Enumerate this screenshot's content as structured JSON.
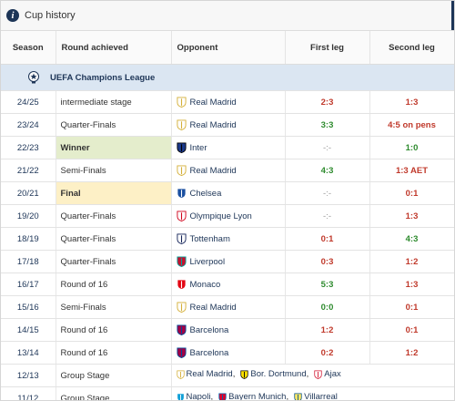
{
  "header": {
    "title": "Cup history"
  },
  "columns": {
    "season": "Season",
    "round": "Round achieved",
    "opponent": "Opponent",
    "first_leg": "First leg",
    "second_leg": "Second leg"
  },
  "competition": {
    "name": "UEFA Champions League"
  },
  "rows": [
    {
      "season": "24/25",
      "round": "intermediate stage",
      "opponent": "Real Madrid",
      "first_leg": "2:3",
      "second_leg": "1:3"
    },
    {
      "season": "23/24",
      "round": "Quarter-Finals",
      "opponent": "Real Madrid",
      "first_leg": "3:3",
      "second_leg": "4:5 on pens"
    },
    {
      "season": "22/23",
      "round": "Winner",
      "opponent": "Inter",
      "first_leg": "-:-",
      "second_leg": "1:0"
    },
    {
      "season": "21/22",
      "round": "Semi-Finals",
      "opponent": "Real Madrid",
      "first_leg": "4:3",
      "second_leg": "1:3 AET"
    },
    {
      "season": "20/21",
      "round": "Final",
      "opponent": "Chelsea",
      "first_leg": "-:-",
      "second_leg": "0:1"
    },
    {
      "season": "19/20",
      "round": "Quarter-Finals",
      "opponent": "Olympique Lyon",
      "first_leg": "-:-",
      "second_leg": "1:3"
    },
    {
      "season": "18/19",
      "round": "Quarter-Finals",
      "opponent": "Tottenham",
      "first_leg": "0:1",
      "second_leg": "4:3"
    },
    {
      "season": "17/18",
      "round": "Quarter-Finals",
      "opponent": "Liverpool",
      "first_leg": "0:3",
      "second_leg": "1:2"
    },
    {
      "season": "16/17",
      "round": "Round of 16",
      "opponent": "Monaco",
      "first_leg": "5:3",
      "second_leg": "1:3"
    },
    {
      "season": "15/16",
      "round": "Semi-Finals",
      "opponent": "Real Madrid",
      "first_leg": "0:0",
      "second_leg": "0:1"
    },
    {
      "season": "14/15",
      "round": "Round of 16",
      "opponent": "Barcelona",
      "first_leg": "1:2",
      "second_leg": "0:1"
    },
    {
      "season": "13/14",
      "round": "Round of 16",
      "opponent": "Barcelona",
      "first_leg": "0:2",
      "second_leg": "1:2"
    }
  ],
  "group_rows": [
    {
      "season": "12/13",
      "round": "Group Stage",
      "teams": [
        "Real Madrid",
        "Bor. Dortmund",
        "Ajax"
      ]
    },
    {
      "season": "11/12",
      "round": "Group Stage",
      "teams": [
        "Napoli",
        "Bayern Munich",
        "Villarreal"
      ]
    }
  ],
  "colors": {
    "win": "#2e8b2e",
    "loss": "#c0392b",
    "link": "#1d3557",
    "winner_bg": "#e4edcc",
    "final_bg": "#fdf0c6",
    "competition_bg": "#dbe6f2"
  }
}
